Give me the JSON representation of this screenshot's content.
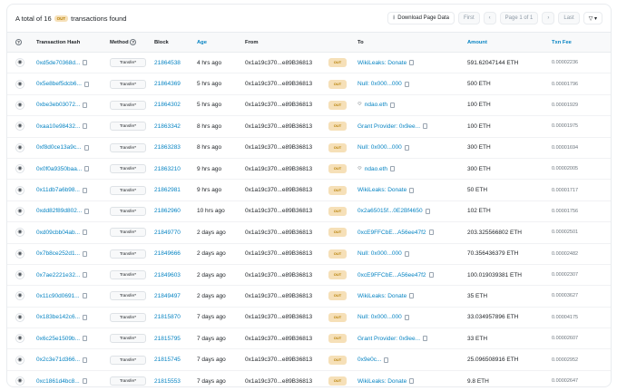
{
  "header": {
    "total_prefix": "A total of 16",
    "direction_badge": "OUT",
    "total_suffix": "transactions found",
    "download_label": "Download Page Data",
    "first_label": "First",
    "page_label": "Page 1 of 1",
    "last_label": "Last"
  },
  "columns": {
    "hash": "Transaction Hash",
    "method": "Method",
    "block": "Block",
    "age": "Age",
    "from": "From",
    "to": "To",
    "amount": "Amount",
    "fee": "Txn Fee"
  },
  "rows": [
    {
      "hash": "0xd5de70368d...",
      "method": "Transfer*",
      "block": "21864538",
      "age": "4 hrs ago",
      "from": "0x1a19c370...e89B36813",
      "dir": "OUT",
      "to": "WikiLeaks: Donate",
      "to_type": "name",
      "amount": "591.62047144 ETH",
      "fee": "0.00002236"
    },
    {
      "hash": "0x5e8bef5dcb6...",
      "method": "Transfer*",
      "block": "21864369",
      "age": "5 hrs ago",
      "from": "0x1a19c370...e89B36813",
      "dir": "OUT",
      "to": "Null: 0x000...000",
      "to_type": "name",
      "amount": "500 ETH",
      "fee": "0.00001796"
    },
    {
      "hash": "0xbe3eb03072...",
      "method": "Transfer*",
      "block": "21864302",
      "age": "5 hrs ago",
      "from": "0x1a19c370...e89B36813",
      "dir": "OUT",
      "to": "ndao.eth",
      "to_type": "ens",
      "amount": "100 ETH",
      "fee": "0.00001929"
    },
    {
      "hash": "0xaa10e98432...",
      "method": "Transfer*",
      "block": "21863342",
      "age": "8 hrs ago",
      "from": "0x1a19c370...e89B36813",
      "dir": "OUT",
      "to": "Grant Provider: 0x9ee...",
      "to_type": "name",
      "amount": "100 ETH",
      "fee": "0.00001975"
    },
    {
      "hash": "0xf8d0ce13a9c...",
      "method": "Transfer*",
      "block": "21863283",
      "age": "8 hrs ago",
      "from": "0x1a19c370...e89B36813",
      "dir": "OUT",
      "to": "Null: 0x000...000",
      "to_type": "name",
      "amount": "300 ETH",
      "fee": "0.00001694"
    },
    {
      "hash": "0x0f0a9350baa...",
      "method": "Transfer*",
      "block": "21863210",
      "age": "9 hrs ago",
      "from": "0x1a19c370...e89B36813",
      "dir": "OUT",
      "to": "ndao.eth",
      "to_type": "ens",
      "amount": "300 ETH",
      "fee": "0.00002005"
    },
    {
      "hash": "0x11db7a6b98...",
      "method": "Transfer*",
      "block": "21862981",
      "age": "9 hrs ago",
      "from": "0x1a19c370...e89B36813",
      "dir": "OUT",
      "to": "WikiLeaks: Donate",
      "to_type": "name",
      "amount": "50 ETH",
      "fee": "0.00001717"
    },
    {
      "hash": "0xdd82f89d802...",
      "method": "Transfer*",
      "block": "21862960",
      "age": "10 hrs ago",
      "from": "0x1a19c370...e89B36813",
      "dir": "OUT",
      "to": "0x2a65015f...0E2Bf4650",
      "to_type": "addr",
      "amount": "102 ETH",
      "fee": "0.00001756"
    },
    {
      "hash": "0xd09cbb04ab...",
      "method": "Transfer*",
      "block": "21849770",
      "age": "2 days ago",
      "from": "0x1a19c370...e89B36813",
      "dir": "OUT",
      "to": "0xcE9FFCbE...A56ee47f2",
      "to_type": "addr",
      "amount": "203.325566802 ETH",
      "fee": "0.00002501"
    },
    {
      "hash": "0x7b8ce252d1...",
      "method": "Transfer*",
      "block": "21849666",
      "age": "2 days ago",
      "from": "0x1a19c370...e89B36813",
      "dir": "OUT",
      "to": "Null: 0x000...000",
      "to_type": "name",
      "amount": "70.356436379 ETH",
      "fee": "0.00002482"
    },
    {
      "hash": "0x7ae2221e32...",
      "method": "Transfer*",
      "block": "21849603",
      "age": "2 days ago",
      "from": "0x1a19c370...e89B36813",
      "dir": "OUT",
      "to": "0xcE9FFCbE...A56ee47f2",
      "to_type": "addr",
      "amount": "100.019039381 ETH",
      "fee": "0.00002307"
    },
    {
      "hash": "0x11c90d0691...",
      "method": "Transfer*",
      "block": "21849497",
      "age": "2 days ago",
      "from": "0x1a19c370...e89B36813",
      "dir": "OUT",
      "to": "WikiLeaks: Donate",
      "to_type": "name",
      "amount": "35 ETH",
      "fee": "0.00003627"
    },
    {
      "hash": "0x183be142c6...",
      "method": "Transfer*",
      "block": "21815870",
      "age": "7 days ago",
      "from": "0x1a19c370...e89B36813",
      "dir": "OUT",
      "to": "Null: 0x000...000",
      "to_type": "name",
      "amount": "33.034957896 ETH",
      "fee": "0.00004175"
    },
    {
      "hash": "0x6c25e1509b...",
      "method": "Transfer*",
      "block": "21815795",
      "age": "7 days ago",
      "from": "0x1a19c370...e89B36813",
      "dir": "OUT",
      "to": "Grant Provider: 0x9ee...",
      "to_type": "name",
      "amount": "33 ETH",
      "fee": "0.00002607"
    },
    {
      "hash": "0x2c3e71d366...",
      "method": "Transfer*",
      "block": "21815745",
      "age": "7 days ago",
      "from": "0x1a19c370...e89B36813",
      "dir": "OUT",
      "to": "0x9e0c...",
      "to_type": "addr",
      "amount": "25.096508916 ETH",
      "fee": "0.00002952"
    },
    {
      "hash": "0xc1861d4bc8...",
      "method": "Transfer*",
      "block": "21815553",
      "age": "7 days ago",
      "from": "0x1a19c370...e89B36813",
      "dir": "OUT",
      "to": "WikiLeaks: Donate",
      "to_type": "name",
      "amount": "9.8 ETH",
      "fee": "0.00002647"
    }
  ]
}
